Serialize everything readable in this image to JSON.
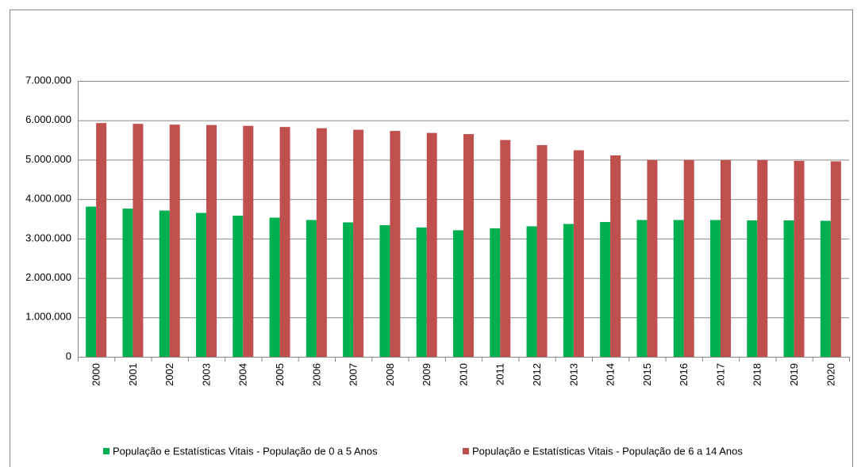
{
  "chart_data": {
    "type": "bar",
    "categories": [
      "2000",
      "2001",
      "2002",
      "2003",
      "2004",
      "2005",
      "2006",
      "2007",
      "2008",
      "2009",
      "2010",
      "2011",
      "2012",
      "2013",
      "2014",
      "2015",
      "2016",
      "2017",
      "2018",
      "2019",
      "2020"
    ],
    "series": [
      {
        "name": "População e Estatísticas Vitais - População de 0 a 5 Anos",
        "color": "#00b050",
        "values": [
          3810000,
          3760000,
          3710000,
          3650000,
          3580000,
          3530000,
          3470000,
          3410000,
          3340000,
          3280000,
          3210000,
          3260000,
          3310000,
          3370000,
          3420000,
          3470000,
          3470000,
          3470000,
          3460000,
          3460000,
          3450000
        ]
      },
      {
        "name": "População e Estatísticas Vitais - População de 6 a 14 Anos",
        "color": "#c0504d",
        "values": [
          5930000,
          5910000,
          5890000,
          5880000,
          5860000,
          5830000,
          5800000,
          5760000,
          5730000,
          5680000,
          5650000,
          5500000,
          5370000,
          5240000,
          5110000,
          4990000,
          4990000,
          4990000,
          4990000,
          4970000,
          4960000
        ]
      }
    ],
    "ylim": [
      0,
      7000000
    ],
    "yticks": [
      0,
      {
        "value": 1000000,
        "label": "1.000.000"
      },
      {
        "value": 2000000,
        "label": "2.000.000"
      },
      {
        "value": 3000000,
        "label": "3.000.000"
      },
      {
        "value": 4000000,
        "label": "4.000.000"
      },
      {
        "value": 5000000,
        "label": "5.000.000"
      },
      {
        "value": 6000000,
        "label": "6.000.000"
      },
      {
        "value": 7000000,
        "label": "7.000.000"
      }
    ],
    "grid": true,
    "legend": "bottom"
  }
}
